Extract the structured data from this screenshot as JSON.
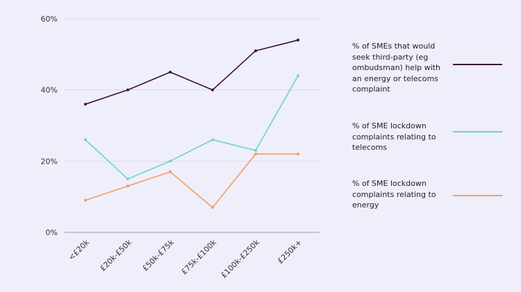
{
  "chart_data": {
    "type": "line",
    "categories": [
      "<£20k",
      "£20k-£50k",
      "£50k-£75k",
      "£75k-£100k",
      "£100k-£250k",
      "£250k+"
    ],
    "ylim": [
      0,
      60
    ],
    "yticks": [
      "0%",
      "20%",
      "40%",
      "60%"
    ],
    "grid": true,
    "legend_position": "right",
    "series": [
      {
        "name": "% of SMEs that would seek third-party (eg ombudsman) help with an energy or telecoms complaint",
        "color": "#3d0c3f",
        "values": [
          36,
          40,
          45,
          40,
          51,
          54
        ]
      },
      {
        "name": "% of SME lockdown complaints relating to telecoms",
        "color": "#6bd6bd",
        "values": [
          26,
          15,
          20,
          26,
          23,
          44
        ]
      },
      {
        "name": "% of SME lockdown complaints relating to energy",
        "color": "#f89c5a",
        "values": [
          9,
          13,
          17,
          7,
          22,
          22
        ]
      }
    ]
  }
}
